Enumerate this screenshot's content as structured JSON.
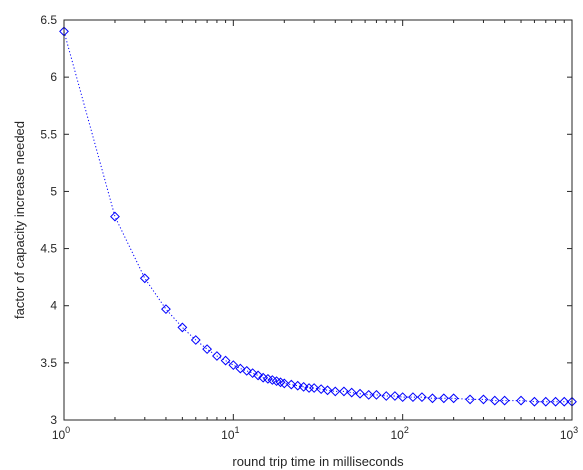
{
  "chart_data": {
    "type": "scatter",
    "title": "",
    "xlabel": "round trip time in milliseconds",
    "ylabel": "factor of capacity increase needed",
    "xscale": "log",
    "xlim": [
      1,
      1000
    ],
    "ylim": [
      3,
      6.5
    ],
    "grid": false,
    "line_style": "dotted",
    "marker": "diamond",
    "colors": {
      "series": "#0000ff",
      "axes": "#262626",
      "background": "#ffffff"
    },
    "x_tick_labels": [
      {
        "base": "10",
        "exp": "0"
      },
      {
        "base": "10",
        "exp": "1"
      },
      {
        "base": "10",
        "exp": "2"
      },
      {
        "base": "10",
        "exp": "3"
      }
    ],
    "y_ticks": [
      "3",
      "3.5",
      "4",
      "4.5",
      "5",
      "5.5",
      "6",
      "6.5"
    ],
    "series": [
      {
        "x": [
          1,
          2,
          3,
          4,
          5,
          6,
          7,
          8,
          9,
          10,
          11,
          12,
          13,
          14,
          15,
          16,
          17,
          18,
          19,
          20,
          22,
          24,
          26,
          28,
          30,
          33,
          36,
          40,
          45,
          50,
          56,
          63,
          70,
          80,
          90,
          100,
          115,
          130,
          150,
          175,
          200,
          250,
          300,
          350,
          400,
          500,
          600,
          700,
          800,
          900,
          1000
        ],
        "y": [
          6.4,
          4.78,
          4.24,
          3.97,
          3.81,
          3.7,
          3.62,
          3.56,
          3.52,
          3.48,
          3.45,
          3.43,
          3.41,
          3.39,
          3.37,
          3.36,
          3.35,
          3.34,
          3.33,
          3.32,
          3.31,
          3.3,
          3.29,
          3.28,
          3.28,
          3.27,
          3.26,
          3.25,
          3.25,
          3.24,
          3.23,
          3.22,
          3.22,
          3.21,
          3.21,
          3.2,
          3.2,
          3.2,
          3.19,
          3.19,
          3.19,
          3.18,
          3.18,
          3.17,
          3.17,
          3.17,
          3.16,
          3.16,
          3.16,
          3.16,
          3.16
        ]
      }
    ]
  }
}
